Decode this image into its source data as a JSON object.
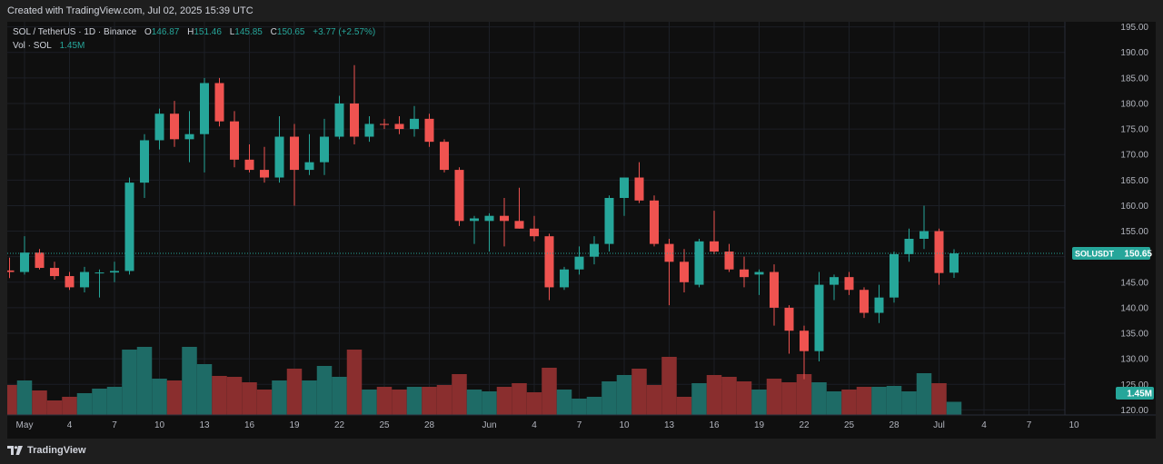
{
  "header": {
    "caption": "Created with TradingView.com, Jul 02, 2025 15:39 UTC"
  },
  "footer": {
    "brand": "TradingView",
    "icon": "tradingview-logo-icon"
  },
  "legend": {
    "symbol": "SOL / TetherUS · 1D · Binance",
    "open_label": "O",
    "open": "146.87",
    "high_label": "H",
    "high": "151.46",
    "low_label": "L",
    "low": "145.85",
    "close_label": "C",
    "close": "150.65",
    "change": "+3.77 (+2.57%)",
    "vol_label": "Vol · SOL",
    "vol": "1.45M"
  },
  "badges": {
    "price_label": "SOLUSDT",
    "price_value": "150.65",
    "volume_value": "1.45M"
  },
  "colors": {
    "up": "#26a69a",
    "down": "#ef5350",
    "up_vol": "#1e6b66",
    "down_vol": "#8a2e2e",
    "badge": "#26a69a"
  },
  "chart_data": {
    "type": "candlestick",
    "title": "SOL / TetherUS · 1D · Binance",
    "y_ticks": [
      120,
      125,
      130,
      135,
      140,
      145,
      150,
      155,
      160,
      165,
      170,
      175,
      180,
      185,
      190,
      195
    ],
    "ylim": [
      119,
      196
    ],
    "last_price": 150.65,
    "grid": true,
    "x_ticks": [
      {
        "i": 1,
        "label": "May"
      },
      {
        "i": 4,
        "label": "4"
      },
      {
        "i": 7,
        "label": "7"
      },
      {
        "i": 10,
        "label": "10"
      },
      {
        "i": 13,
        "label": "13"
      },
      {
        "i": 16,
        "label": "16"
      },
      {
        "i": 19,
        "label": "19"
      },
      {
        "i": 22,
        "label": "22"
      },
      {
        "i": 25,
        "label": "25"
      },
      {
        "i": 28,
        "label": "28"
      },
      {
        "i": 32,
        "label": "Jun"
      },
      {
        "i": 35,
        "label": "4"
      },
      {
        "i": 38,
        "label": "7"
      },
      {
        "i": 41,
        "label": "10"
      },
      {
        "i": 44,
        "label": "13"
      },
      {
        "i": 47,
        "label": "16"
      },
      {
        "i": 50,
        "label": "19"
      },
      {
        "i": 53,
        "label": "22"
      },
      {
        "i": 56,
        "label": "25"
      },
      {
        "i": 59,
        "label": "28"
      },
      {
        "i": 62,
        "label": "Jul"
      },
      {
        "i": 65,
        "label": "4"
      },
      {
        "i": 68,
        "label": "7"
      },
      {
        "i": 71,
        "label": "10"
      }
    ],
    "candles": [
      {
        "o": 147.3,
        "h": 149.8,
        "l": 145.8,
        "c": 147.0
      },
      {
        "o": 147.0,
        "h": 154.0,
        "l": 146.5,
        "c": 150.8
      },
      {
        "o": 150.8,
        "h": 151.5,
        "l": 147.5,
        "c": 147.8
      },
      {
        "o": 147.8,
        "h": 149.0,
        "l": 145.5,
        "c": 146.2
      },
      {
        "o": 146.2,
        "h": 147.0,
        "l": 143.5,
        "c": 144.0
      },
      {
        "o": 144.0,
        "h": 148.0,
        "l": 143.0,
        "c": 147.0
      },
      {
        "o": 146.8,
        "h": 147.5,
        "l": 142.0,
        "c": 146.9
      },
      {
        "o": 146.9,
        "h": 149.0,
        "l": 145.0,
        "c": 147.2
      },
      {
        "o": 147.2,
        "h": 165.5,
        "l": 146.5,
        "c": 164.5
      },
      {
        "o": 164.5,
        "h": 174.0,
        "l": 161.5,
        "c": 172.8
      },
      {
        "o": 172.8,
        "h": 179.0,
        "l": 171.0,
        "c": 178.0
      },
      {
        "o": 178.0,
        "h": 180.5,
        "l": 171.5,
        "c": 173.0
      },
      {
        "o": 173.0,
        "h": 178.5,
        "l": 168.5,
        "c": 174.0
      },
      {
        "o": 174.0,
        "h": 185.0,
        "l": 166.5,
        "c": 184.0
      },
      {
        "o": 184.0,
        "h": 185.0,
        "l": 175.5,
        "c": 176.5
      },
      {
        "o": 176.5,
        "h": 178.5,
        "l": 167.5,
        "c": 169.0
      },
      {
        "o": 169.0,
        "h": 172.0,
        "l": 166.5,
        "c": 167.0
      },
      {
        "o": 167.0,
        "h": 171.5,
        "l": 164.5,
        "c": 165.5
      },
      {
        "o": 165.5,
        "h": 177.5,
        "l": 164.5,
        "c": 173.5
      },
      {
        "o": 173.5,
        "h": 176.0,
        "l": 160.0,
        "c": 167.0
      },
      {
        "o": 167.0,
        "h": 174.0,
        "l": 166.0,
        "c": 168.5
      },
      {
        "o": 168.5,
        "h": 177.0,
        "l": 166.0,
        "c": 173.5
      },
      {
        "o": 173.5,
        "h": 181.5,
        "l": 173.0,
        "c": 180.0
      },
      {
        "o": 180.0,
        "h": 187.5,
        "l": 172.0,
        "c": 173.5
      },
      {
        "o": 173.5,
        "h": 177.5,
        "l": 172.5,
        "c": 176.0
      },
      {
        "o": 176.0,
        "h": 177.0,
        "l": 175.0,
        "c": 175.8
      },
      {
        "o": 176.0,
        "h": 177.5,
        "l": 174.0,
        "c": 175.0
      },
      {
        "o": 175.0,
        "h": 179.5,
        "l": 173.5,
        "c": 177.0
      },
      {
        "o": 177.0,
        "h": 178.0,
        "l": 171.5,
        "c": 172.5
      },
      {
        "o": 172.5,
        "h": 173.0,
        "l": 166.5,
        "c": 167.0
      },
      {
        "o": 167.0,
        "h": 167.5,
        "l": 156.0,
        "c": 157.0
      },
      {
        "o": 157.0,
        "h": 158.0,
        "l": 152.5,
        "c": 157.5
      },
      {
        "o": 157.0,
        "h": 158.5,
        "l": 151.0,
        "c": 158.0
      },
      {
        "o": 158.0,
        "h": 161.5,
        "l": 152.0,
        "c": 157.0
      },
      {
        "o": 157.0,
        "h": 163.5,
        "l": 155.5,
        "c": 155.5
      },
      {
        "o": 155.5,
        "h": 158.0,
        "l": 153.0,
        "c": 154.0
      },
      {
        "o": 154.0,
        "h": 154.5,
        "l": 141.5,
        "c": 144.0
      },
      {
        "o": 144.0,
        "h": 148.0,
        "l": 143.5,
        "c": 147.5
      },
      {
        "o": 147.5,
        "h": 152.0,
        "l": 146.5,
        "c": 150.0
      },
      {
        "o": 150.0,
        "h": 154.0,
        "l": 148.5,
        "c": 152.5
      },
      {
        "o": 152.5,
        "h": 162.0,
        "l": 151.0,
        "c": 161.5
      },
      {
        "o": 161.5,
        "h": 165.5,
        "l": 158.0,
        "c": 165.5
      },
      {
        "o": 165.5,
        "h": 168.5,
        "l": 160.5,
        "c": 161.0
      },
      {
        "o": 161.0,
        "h": 162.0,
        "l": 152.0,
        "c": 152.5
      },
      {
        "o": 152.5,
        "h": 153.5,
        "l": 140.5,
        "c": 149.0
      },
      {
        "o": 149.0,
        "h": 151.5,
        "l": 143.0,
        "c": 145.0
      },
      {
        "o": 144.5,
        "h": 153.5,
        "l": 144.0,
        "c": 153.0
      },
      {
        "o": 153.0,
        "h": 159.0,
        "l": 150.5,
        "c": 151.0
      },
      {
        "o": 151.0,
        "h": 152.5,
        "l": 147.0,
        "c": 147.5
      },
      {
        "o": 147.5,
        "h": 150.0,
        "l": 144.0,
        "c": 146.0
      },
      {
        "o": 146.5,
        "h": 147.5,
        "l": 142.5,
        "c": 147.0
      },
      {
        "o": 147.0,
        "h": 148.5,
        "l": 136.5,
        "c": 140.0
      },
      {
        "o": 140.0,
        "h": 140.5,
        "l": 131.0,
        "c": 135.5
      },
      {
        "o": 135.5,
        "h": 136.5,
        "l": 126.0,
        "c": 131.5
      },
      {
        "o": 131.5,
        "h": 147.0,
        "l": 129.5,
        "c": 144.5
      },
      {
        "o": 144.5,
        "h": 146.5,
        "l": 141.5,
        "c": 146.0
      },
      {
        "o": 146.0,
        "h": 147.0,
        "l": 142.5,
        "c": 143.5
      },
      {
        "o": 143.5,
        "h": 144.0,
        "l": 138.0,
        "c": 139.0
      },
      {
        "o": 139.0,
        "h": 144.5,
        "l": 137.0,
        "c": 142.0
      },
      {
        "o": 142.0,
        "h": 151.0,
        "l": 141.0,
        "c": 150.5
      },
      {
        "o": 150.5,
        "h": 155.5,
        "l": 149.0,
        "c": 153.5
      },
      {
        "o": 153.5,
        "h": 160.0,
        "l": 151.5,
        "c": 155.0
      },
      {
        "o": 155.0,
        "h": 155.5,
        "l": 144.5,
        "c": 146.8
      },
      {
        "o": 146.87,
        "h": 151.46,
        "l": 145.85,
        "c": 150.65
      }
    ],
    "volume_max_millions": 8.2,
    "volumes": [
      3.3,
      3.8,
      2.7,
      1.6,
      2.0,
      2.4,
      2.9,
      3.1,
      7.2,
      7.5,
      4.0,
      3.8,
      7.5,
      5.6,
      4.3,
      4.2,
      3.6,
      2.8,
      3.8,
      5.1,
      3.8,
      5.4,
      4.2,
      7.2,
      2.8,
      3.1,
      2.8,
      3.1,
      3.1,
      3.3,
      4.5,
      2.8,
      2.6,
      3.1,
      3.5,
      2.5,
      5.2,
      2.8,
      1.8,
      2.0,
      3.7,
      4.4,
      5.1,
      3.3,
      6.4,
      2.0,
      3.5,
      4.4,
      4.2,
      3.7,
      2.8,
      4.0,
      3.6,
      4.5,
      3.6,
      2.6,
      2.8,
      3.1,
      3.1,
      3.2,
      2.6,
      4.6,
      3.5,
      1.45
    ]
  }
}
